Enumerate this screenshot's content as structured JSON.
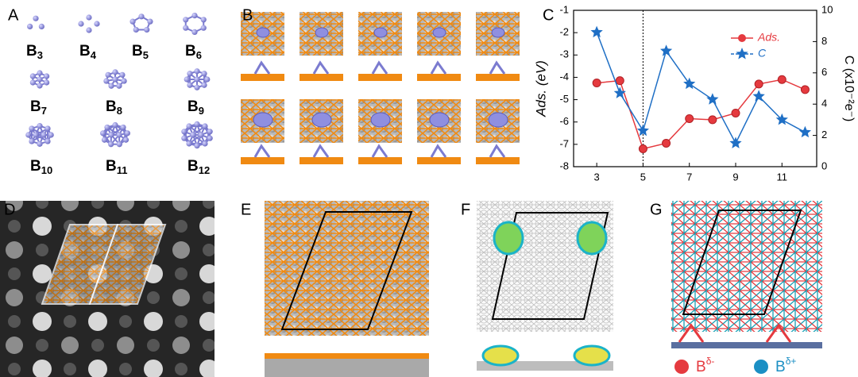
{
  "panel_labels": [
    "A",
    "B",
    "C",
    "D",
    "E",
    "F",
    "G"
  ],
  "clusters": [
    {
      "symbol": "B",
      "subscript": "3"
    },
    {
      "symbol": "B",
      "subscript": "4"
    },
    {
      "symbol": "B",
      "subscript": "5"
    },
    {
      "symbol": "B",
      "subscript": "6"
    },
    {
      "symbol": "B",
      "subscript": "7"
    },
    {
      "symbol": "B",
      "subscript": "8"
    },
    {
      "symbol": "B",
      "subscript": "9"
    },
    {
      "symbol": "B",
      "subscript": "10"
    },
    {
      "symbol": "B",
      "subscript": "11"
    },
    {
      "symbol": "B",
      "subscript": "12"
    }
  ],
  "charge_legend": [
    {
      "symbol": "B",
      "superscript": "δ-",
      "color": "#e53a3f"
    },
    {
      "symbol": "B",
      "superscript": "δ+",
      "color": "#1b8fc4"
    }
  ],
  "chart_data": {
    "type": "line",
    "x": [
      3,
      4,
      5,
      6,
      7,
      8,
      9,
      10,
      11,
      12
    ],
    "xlim": [
      2,
      12.5
    ],
    "xticks": [
      3,
      5,
      7,
      9,
      11
    ],
    "ylim": [
      -8,
      -1
    ],
    "yticks": [
      -8,
      -7,
      -6,
      -5,
      -4,
      -3,
      -2,
      -1
    ],
    "y2lim": [
      0,
      10
    ],
    "y2ticks": [
      0,
      2,
      4,
      6,
      8,
      10
    ],
    "ylabel": "Ads. (eV)",
    "y2label": "C (x10⁻²e⁻)",
    "vline": 5,
    "series": [
      {
        "name": "Ads.",
        "color": "#e53a3f",
        "marker": "circle",
        "values": [
          -4.25,
          -4.15,
          -7.2,
          -6.95,
          -5.85,
          -5.9,
          -5.6,
          -4.3,
          -4.1,
          -4.55
        ]
      },
      {
        "name": "C",
        "color": "#1f6fc5",
        "marker": "star",
        "axis": "y2",
        "values": [
          8.6,
          4.7,
          2.3,
          7.4,
          5.3,
          4.3,
          1.5,
          4.5,
          3.0,
          2.2
        ]
      }
    ]
  }
}
